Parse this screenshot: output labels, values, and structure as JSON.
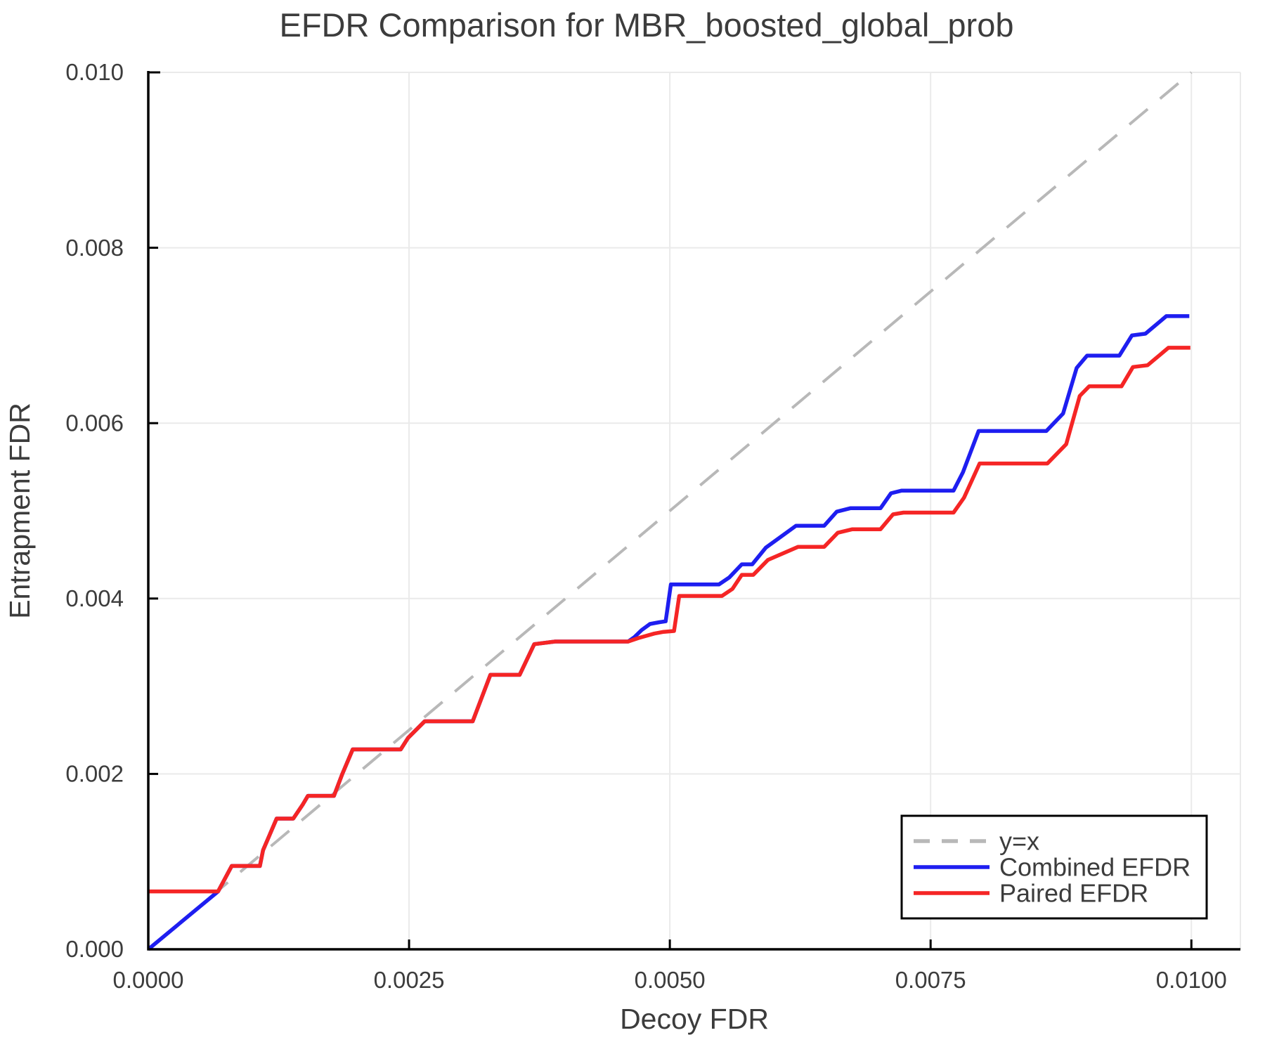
{
  "title": "EFDR Comparison for MBR_boosted_global_prob",
  "chart_data": {
    "type": "line",
    "title": "EFDR Comparison for MBR_boosted_global_prob",
    "xlabel": "Decoy FDR",
    "ylabel": "Entrapment FDR",
    "xlim": [
      0,
      0.01047
    ],
    "ylim": [
      0,
      0.01
    ],
    "grid": true,
    "background": "#ffffff",
    "grid_color": "#eaeaea",
    "spine_color": "#000000",
    "text_color": "#3c3c3c",
    "xticks": {
      "values": [
        0,
        0.0025,
        0.005,
        0.0075,
        0.01
      ],
      "labels": [
        "0.0000",
        "0.0025",
        "0.0050",
        "0.0075",
        "0.0100"
      ]
    },
    "yticks": {
      "values": [
        0,
        0.002,
        0.004,
        0.006,
        0.008,
        0.01
      ],
      "labels": [
        "0.000",
        "0.002",
        "0.004",
        "0.006",
        "0.008",
        "0.010"
      ]
    },
    "legend": {
      "position": "bottom-right",
      "entries": [
        {
          "label": "y=x",
          "color": "#b8b8b8",
          "dash": true
        },
        {
          "label": "Combined EFDR",
          "color": "#1e1ef0",
          "dash": false
        },
        {
          "label": "Paired EFDR",
          "color": "#f52525",
          "dash": false
        }
      ]
    },
    "series": [
      {
        "name": "y=x",
        "color": "#b8b8b8",
        "dash": true,
        "width": 4,
        "points": [
          [
            0,
            0
          ],
          [
            0.01,
            0.01
          ]
        ]
      },
      {
        "name": "Combined EFDR",
        "color": "#1e1ef0",
        "dash": false,
        "width": 5.5,
        "points": [
          [
            0.0,
            0.0
          ],
          [
            0.00067,
            0.00066
          ],
          [
            0.0008,
            0.00095
          ],
          [
            0.00107,
            0.00095
          ],
          [
            0.0011,
            0.00113
          ],
          [
            0.00123,
            0.00149
          ],
          [
            0.00139,
            0.00149
          ],
          [
            0.00148,
            0.00165
          ],
          [
            0.00153,
            0.00175
          ],
          [
            0.00178,
            0.00175
          ],
          [
            0.00186,
            0.002
          ],
          [
            0.00196,
            0.00228
          ],
          [
            0.00242,
            0.00228
          ],
          [
            0.00249,
            0.00241
          ],
          [
            0.00265,
            0.0026
          ],
          [
            0.00311,
            0.0026
          ],
          [
            0.00328,
            0.00313
          ],
          [
            0.00356,
            0.00313
          ],
          [
            0.0037,
            0.00348
          ],
          [
            0.0039,
            0.00351
          ],
          [
            0.0046,
            0.00351
          ],
          [
            0.00466,
            0.00356
          ],
          [
            0.00473,
            0.00364
          ],
          [
            0.00481,
            0.00371
          ],
          [
            0.0049,
            0.00373
          ],
          [
            0.00496,
            0.00374
          ],
          [
            0.00501,
            0.00416
          ],
          [
            0.00547,
            0.00416
          ],
          [
            0.00557,
            0.00424
          ],
          [
            0.00569,
            0.00439
          ],
          [
            0.00579,
            0.00439
          ],
          [
            0.00592,
            0.00458
          ],
          [
            0.00621,
            0.00483
          ],
          [
            0.00648,
            0.00483
          ],
          [
            0.0066,
            0.00499
          ],
          [
            0.00673,
            0.00503
          ],
          [
            0.00702,
            0.00503
          ],
          [
            0.00712,
            0.0052
          ],
          [
            0.00722,
            0.00523
          ],
          [
            0.00772,
            0.00523
          ],
          [
            0.00781,
            0.00544
          ],
          [
            0.00796,
            0.00591
          ],
          [
            0.00861,
            0.00591
          ],
          [
            0.00877,
            0.00611
          ],
          [
            0.0089,
            0.00663
          ],
          [
            0.009,
            0.00677
          ],
          [
            0.00931,
            0.00677
          ],
          [
            0.00943,
            0.007
          ],
          [
            0.00956,
            0.00702
          ],
          [
            0.00976,
            0.00722
          ],
          [
            0.00998,
            0.00722
          ]
        ]
      },
      {
        "name": "Paired EFDR",
        "color": "#f52525",
        "dash": false,
        "width": 5.5,
        "points": [
          [
            0.0,
            0.00066
          ],
          [
            0.00067,
            0.00066
          ],
          [
            0.0008,
            0.00095
          ],
          [
            0.00107,
            0.00095
          ],
          [
            0.0011,
            0.00113
          ],
          [
            0.00123,
            0.00149
          ],
          [
            0.00139,
            0.00149
          ],
          [
            0.00148,
            0.00165
          ],
          [
            0.00153,
            0.00175
          ],
          [
            0.00178,
            0.00175
          ],
          [
            0.00186,
            0.002
          ],
          [
            0.00196,
            0.00228
          ],
          [
            0.00242,
            0.00228
          ],
          [
            0.00249,
            0.00241
          ],
          [
            0.00265,
            0.0026
          ],
          [
            0.00311,
            0.0026
          ],
          [
            0.00328,
            0.00313
          ],
          [
            0.00356,
            0.00313
          ],
          [
            0.0037,
            0.00348
          ],
          [
            0.0039,
            0.00351
          ],
          [
            0.0046,
            0.00351
          ],
          [
            0.0047,
            0.00355
          ],
          [
            0.00485,
            0.0036
          ],
          [
            0.00494,
            0.00362
          ],
          [
            0.00504,
            0.00363
          ],
          [
            0.00509,
            0.00403
          ],
          [
            0.0055,
            0.00403
          ],
          [
            0.0056,
            0.00411
          ],
          [
            0.00569,
            0.00427
          ],
          [
            0.0058,
            0.00427
          ],
          [
            0.00594,
            0.00444
          ],
          [
            0.00623,
            0.00459
          ],
          [
            0.00648,
            0.00459
          ],
          [
            0.00661,
            0.00475
          ],
          [
            0.00675,
            0.00479
          ],
          [
            0.00702,
            0.00479
          ],
          [
            0.00714,
            0.00496
          ],
          [
            0.00724,
            0.00498
          ],
          [
            0.00772,
            0.00498
          ],
          [
            0.00782,
            0.00515
          ],
          [
            0.00797,
            0.00554
          ],
          [
            0.00862,
            0.00554
          ],
          [
            0.0088,
            0.00576
          ],
          [
            0.00893,
            0.00631
          ],
          [
            0.00902,
            0.00642
          ],
          [
            0.00933,
            0.00642
          ],
          [
            0.00944,
            0.00664
          ],
          [
            0.00958,
            0.00666
          ],
          [
            0.00978,
            0.00686
          ],
          [
            0.00999,
            0.00686
          ]
        ]
      }
    ]
  }
}
